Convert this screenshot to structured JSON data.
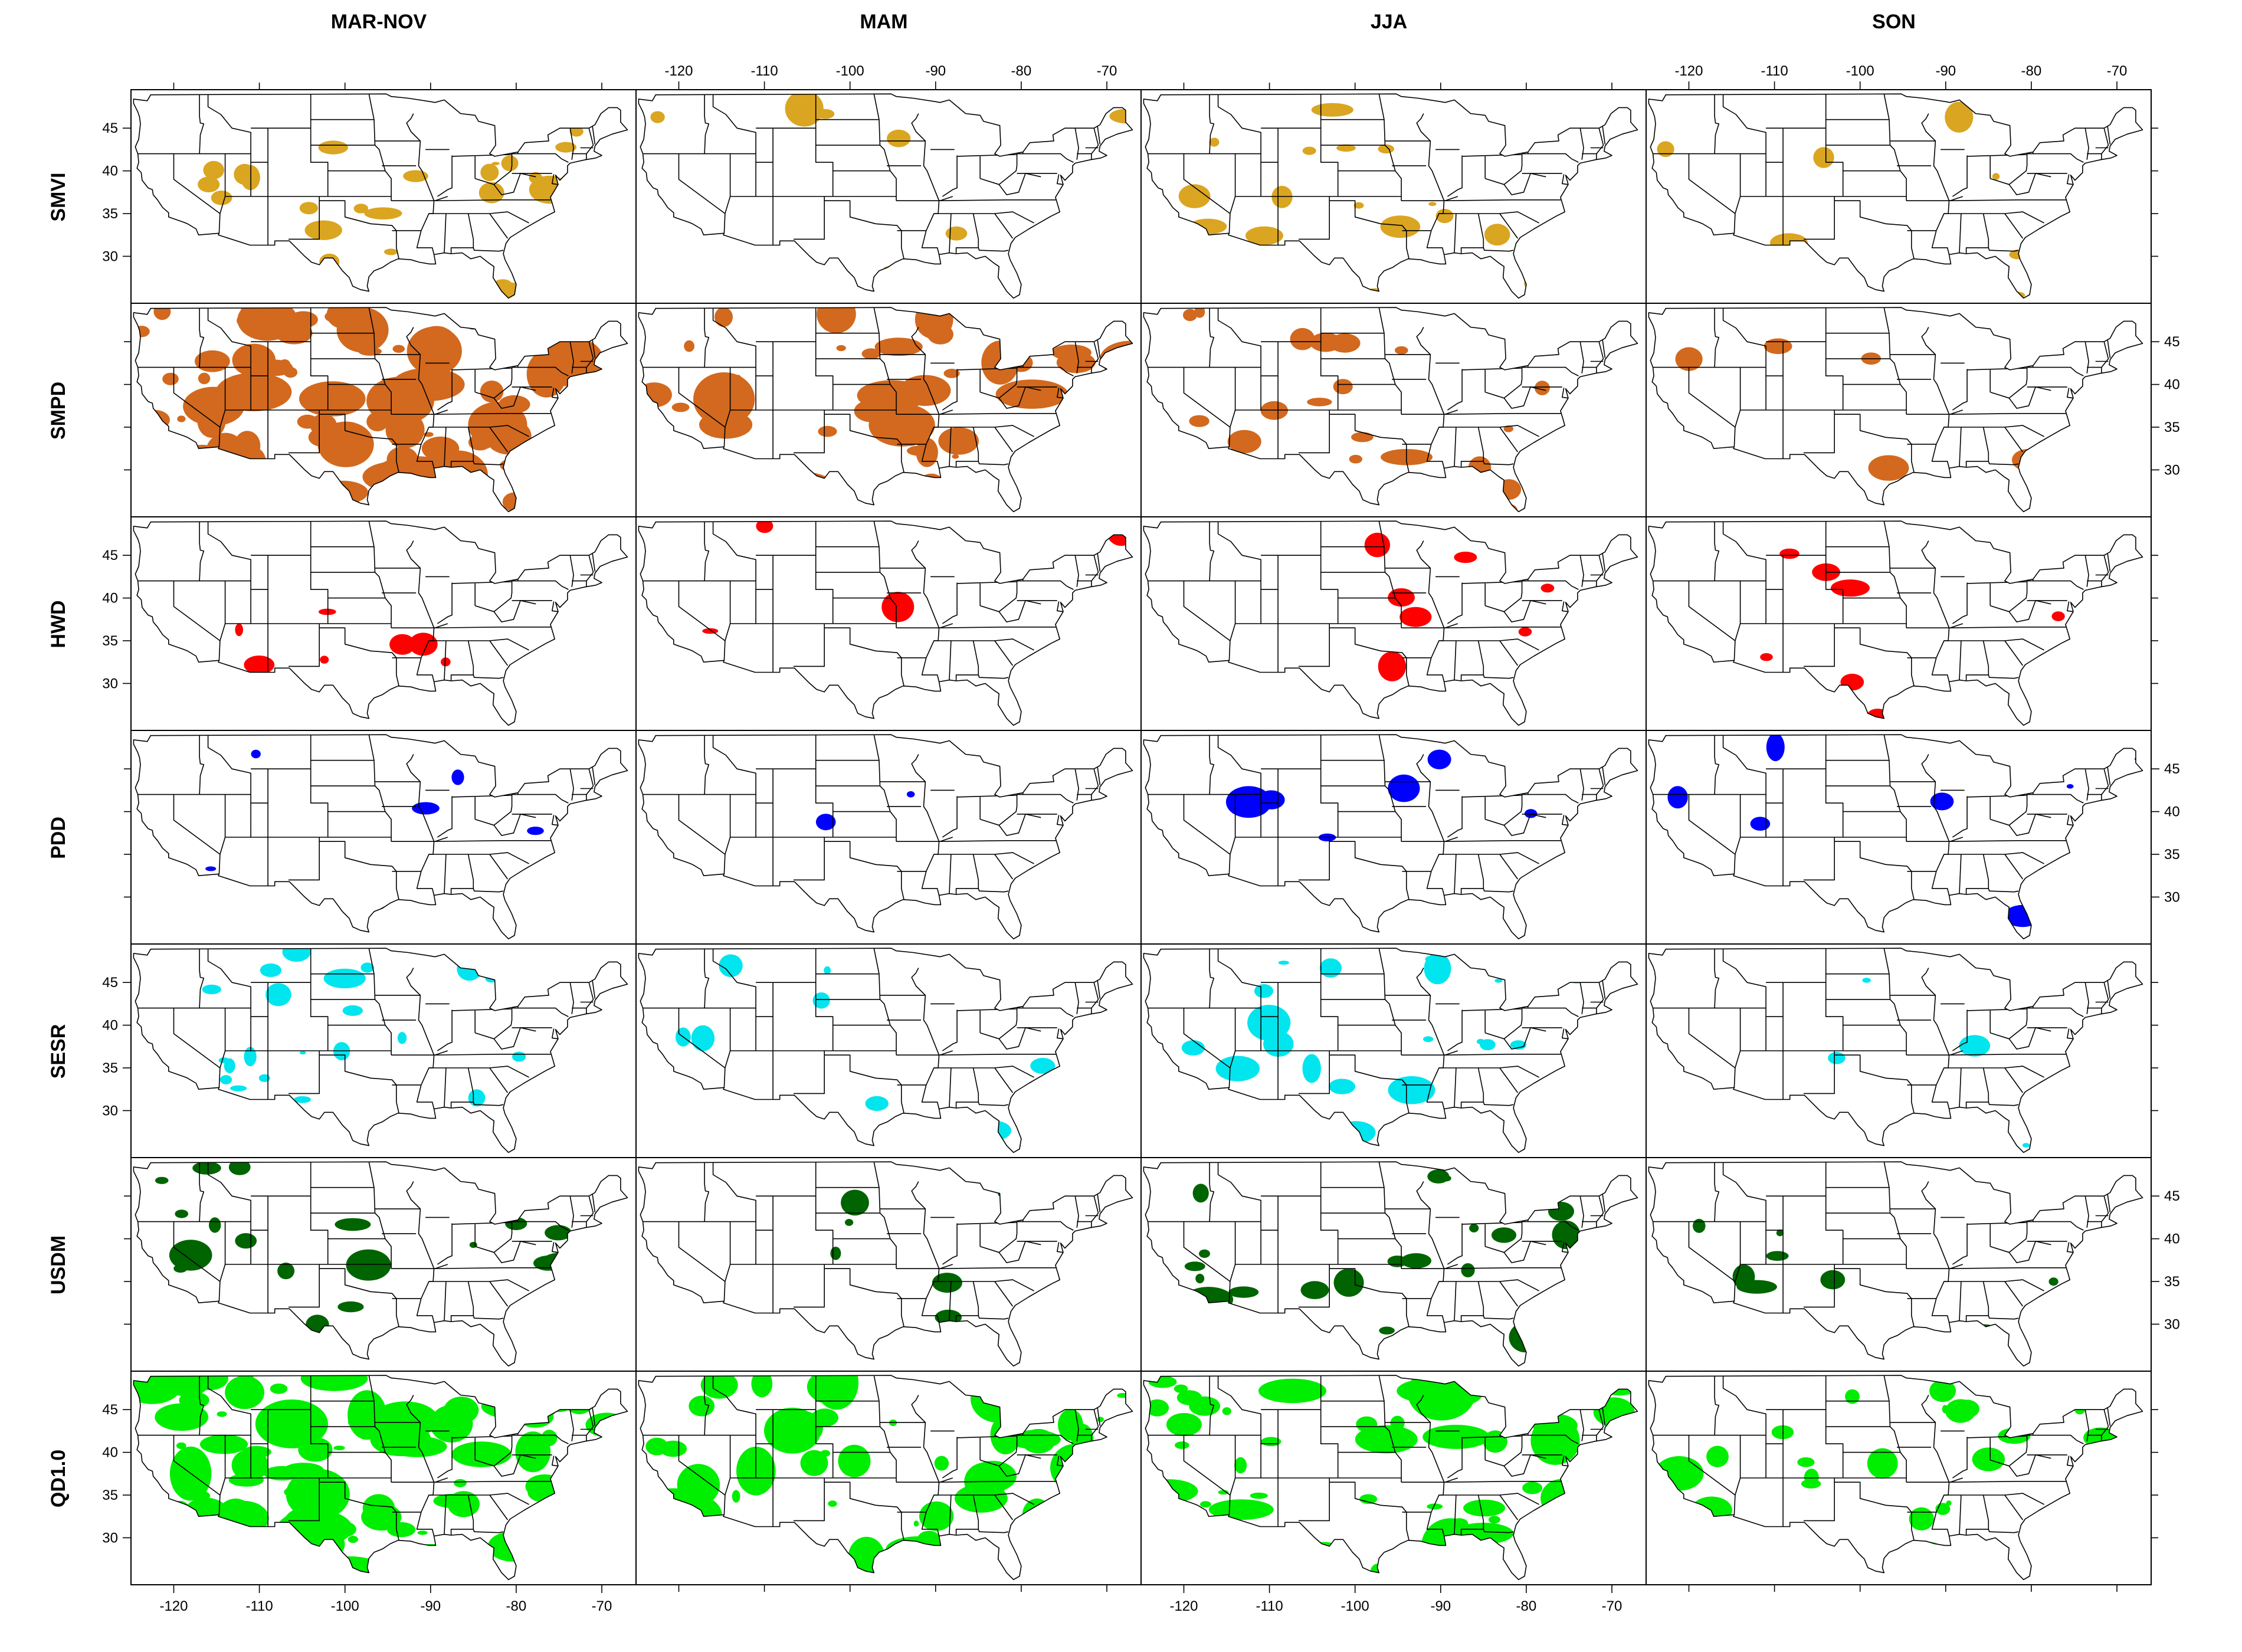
{
  "columns": [
    "MAR-NOV",
    "MAM",
    "JJA",
    "SON"
  ],
  "rows": [
    {
      "label": "SMVI",
      "color": "#DAA520"
    },
    {
      "label": "SMPD",
      "color": "#D2691E"
    },
    {
      "label": "HWD",
      "color": "#FF0000"
    },
    {
      "label": "PDD",
      "color": "#0000FF"
    },
    {
      "label": "SESR",
      "color": "#00E5EE"
    },
    {
      "label": "USDM",
      "color": "#006400"
    },
    {
      "label": "QD1.0",
      "color": "#00EE00"
    }
  ],
  "lon_ticks": [
    "-120",
    "-110",
    "-100",
    "-90",
    "-80",
    "-70"
  ],
  "lat_ticks": [
    "45",
    "40",
    "35",
    "30"
  ],
  "coverage": {
    "SMVI": [
      "moderate",
      "low",
      "moderate",
      "low"
    ],
    "SMPD": [
      "very high",
      "high",
      "moderate",
      "low"
    ],
    "HWD": [
      "low",
      "very low",
      "low",
      "low"
    ],
    "PDD": [
      "low",
      "very low",
      "low",
      "low"
    ],
    "SESR": [
      "moderate",
      "low",
      "moderate",
      "very low"
    ],
    "USDM": [
      "moderate",
      "low",
      "moderate",
      "low"
    ],
    "QD1.0": [
      "very high",
      "high",
      "high",
      "moderate"
    ]
  },
  "map_outline": {
    "region": "CONUS",
    "lon_range": [
      -125,
      -66
    ],
    "lat_range": [
      24.5,
      49.5
    ],
    "outline": [
      [
        -124.7,
        48.4
      ],
      [
        -123.1,
        48.2
      ],
      [
        -122.7,
        48.9
      ],
      [
        -95.2,
        49.0
      ],
      [
        -94.6,
        48.7
      ],
      [
        -92.6,
        48.5
      ],
      [
        -90.0,
        48.1
      ],
      [
        -89.5,
        48.0
      ],
      [
        -88.4,
        48.3
      ],
      [
        -86.5,
        46.7
      ],
      [
        -84.8,
        46.5
      ],
      [
        -84.4,
        45.8
      ],
      [
        -82.5,
        45.3
      ],
      [
        -82.4,
        43.0
      ],
      [
        -83.1,
        42.0
      ],
      [
        -82.5,
        41.7
      ],
      [
        -79.8,
        42.2
      ],
      [
        -79.0,
        43.3
      ],
      [
        -76.2,
        43.5
      ],
      [
        -76.3,
        44.2
      ],
      [
        -74.9,
        45.0
      ],
      [
        -71.5,
        45.0
      ],
      [
        -70.8,
        45.4
      ],
      [
        -70.1,
        46.7
      ],
      [
        -69.2,
        47.4
      ],
      [
        -68.2,
        47.4
      ],
      [
        -67.8,
        47.1
      ],
      [
        -67.8,
        45.7
      ],
      [
        -67.0,
        44.8
      ],
      [
        -68.8,
        44.3
      ],
      [
        -70.2,
        43.7
      ],
      [
        -70.8,
        42.9
      ],
      [
        -70.9,
        42.3
      ],
      [
        -70.0,
        41.8
      ],
      [
        -70.7,
        41.5
      ],
      [
        -71.9,
        41.3
      ],
      [
        -73.7,
        40.9
      ],
      [
        -74.0,
        40.6
      ],
      [
        -74.0,
        39.8
      ],
      [
        -74.9,
        38.9
      ],
      [
        -75.4,
        39.5
      ],
      [
        -75.1,
        38.4
      ],
      [
        -75.7,
        37.4
      ],
      [
        -76.0,
        36.9
      ],
      [
        -75.7,
        35.9
      ],
      [
        -75.5,
        35.2
      ],
      [
        -76.5,
        34.7
      ],
      [
        -77.9,
        33.9
      ],
      [
        -79.1,
        33.2
      ],
      [
        -80.7,
        32.2
      ],
      [
        -81.2,
        31.5
      ],
      [
        -81.5,
        30.3
      ],
      [
        -81.3,
        29.6
      ],
      [
        -80.5,
        28.0
      ],
      [
        -80.0,
        26.7
      ],
      [
        -80.2,
        25.5
      ],
      [
        -80.9,
        25.1
      ],
      [
        -81.7,
        25.9
      ],
      [
        -82.7,
        27.5
      ],
      [
        -82.6,
        28.8
      ],
      [
        -83.2,
        29.2
      ],
      [
        -84.2,
        30.0
      ],
      [
        -85.3,
        29.7
      ],
      [
        -86.3,
        30.4
      ],
      [
        -87.6,
        30.3
      ],
      [
        -88.4,
        30.4
      ],
      [
        -89.6,
        30.2
      ],
      [
        -89.4,
        29.1
      ],
      [
        -90.1,
        29.1
      ],
      [
        -91.3,
        29.3
      ],
      [
        -92.3,
        29.6
      ],
      [
        -93.8,
        29.7
      ],
      [
        -94.7,
        29.3
      ],
      [
        -95.6,
        28.7
      ],
      [
        -96.6,
        28.3
      ],
      [
        -97.2,
        27.6
      ],
      [
        -97.4,
        26.5
      ],
      [
        -97.2,
        25.9
      ],
      [
        -98.2,
        26.1
      ],
      [
        -99.1,
        26.5
      ],
      [
        -99.5,
        27.5
      ],
      [
        -100.3,
        28.3
      ],
      [
        -101.4,
        29.8
      ],
      [
        -102.4,
        29.8
      ],
      [
        -103.0,
        29.0
      ],
      [
        -103.9,
        29.3
      ],
      [
        -104.7,
        30.0
      ],
      [
        -106.5,
        31.8
      ],
      [
        -108.2,
        31.8
      ],
      [
        -108.2,
        31.3
      ],
      [
        -111.1,
        31.3
      ],
      [
        -114.8,
        32.5
      ],
      [
        -114.7,
        32.7
      ],
      [
        -117.1,
        32.5
      ],
      [
        -117.4,
        33.2
      ],
      [
        -118.4,
        33.8
      ],
      [
        -118.9,
        34.0
      ],
      [
        -120.6,
        34.6
      ],
      [
        -120.6,
        35.1
      ],
      [
        -121.3,
        35.7
      ],
      [
        -121.9,
        36.6
      ],
      [
        -122.4,
        37.2
      ],
      [
        -122.5,
        37.8
      ],
      [
        -123.0,
        38.0
      ],
      [
        -123.7,
        38.9
      ],
      [
        -123.8,
        39.8
      ],
      [
        -124.3,
        40.3
      ],
      [
        -124.1,
        41.0
      ],
      [
        -124.2,
        42.0
      ],
      [
        -124.5,
        42.8
      ],
      [
        -124.1,
        43.7
      ],
      [
        -123.9,
        45.5
      ],
      [
        -124.0,
        46.3
      ],
      [
        -124.2,
        46.9
      ],
      [
        -124.7,
        47.9
      ],
      [
        -124.7,
        48.4
      ]
    ]
  }
}
